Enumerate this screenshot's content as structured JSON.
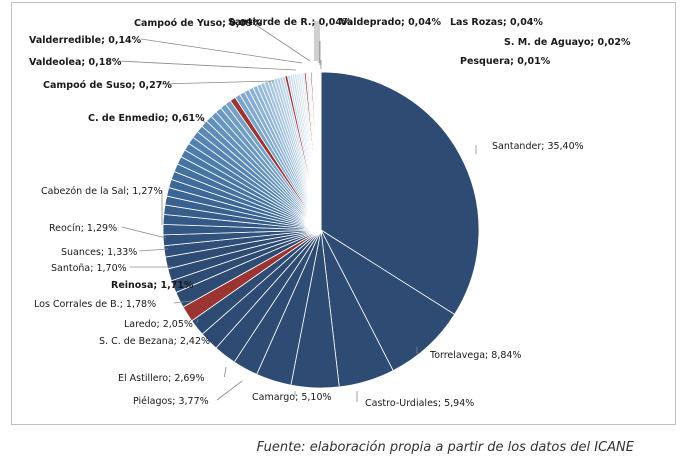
{
  "chart_data": {
    "type": "pie",
    "unit": "%",
    "slices": [
      {
        "label": "Santander; 35,40%",
        "value": 35.4,
        "color": "#2e4b73",
        "bold": false
      },
      {
        "label": "Torrelavega; 8,84%",
        "value": 8.84,
        "color": "#2e4b73",
        "bold": false
      },
      {
        "label": "Castro-Urdiales; 5,94%",
        "value": 5.94,
        "color": "#2e4b73",
        "bold": false
      },
      {
        "label": "Camargo; 5,10%",
        "value": 5.1,
        "color": "#2e4b73",
        "bold": false
      },
      {
        "label": "Piélagos; 3,77%",
        "value": 3.77,
        "color": "#2e4b73",
        "bold": false
      },
      {
        "label": "El Astillero; 2,69%",
        "value": 2.69,
        "color": "#2e4b73",
        "bold": false
      },
      {
        "label": "S. C. de Bezana; 2,42%",
        "value": 2.42,
        "color": "#2e4b73",
        "bold": false
      },
      {
        "label": "Laredo; 2,05%",
        "value": 2.05,
        "color": "#2e4b73",
        "bold": false
      },
      {
        "label": "Los Corrales de B.; 1,78%",
        "value": 1.78,
        "color": "#2e4b73",
        "bold": false
      },
      {
        "label": "Reinosa; 1,71%",
        "value": 1.71,
        "color": "#9b3533",
        "bold": true
      },
      {
        "label": "Santoña; 1,70%",
        "value": 1.7,
        "color": "#2e4b73",
        "bold": false
      },
      {
        "label": "Suances; 1,33%",
        "value": 1.33,
        "color": "#2e4b73",
        "bold": false
      },
      {
        "label": "Reocín; 1,29%",
        "value": 1.29,
        "color": "#2e4b73",
        "bold": false
      },
      {
        "label": "Cabezón de la Sal; 1,27%",
        "value": 1.27,
        "color": "#2e4b73",
        "bold": false
      },
      {
        "label": "",
        "value": 1.2,
        "color": "#2f4f79"
      },
      {
        "label": "",
        "value": 1.15,
        "color": "#31527d"
      },
      {
        "label": "",
        "value": 1.1,
        "color": "#335682"
      },
      {
        "label": "",
        "value": 1.05,
        "color": "#355986"
      },
      {
        "label": "",
        "value": 1.0,
        "color": "#375d8b"
      },
      {
        "label": "",
        "value": 0.95,
        "color": "#39618f"
      },
      {
        "label": "",
        "value": 0.92,
        "color": "#3b6594"
      },
      {
        "label": "",
        "value": 0.9,
        "color": "#3d6998"
      },
      {
        "label": "",
        "value": 0.88,
        "color": "#406d9c"
      },
      {
        "label": "",
        "value": 0.86,
        "color": "#4371a0"
      },
      {
        "label": "",
        "value": 0.84,
        "color": "#4675a4"
      },
      {
        "label": "",
        "value": 0.82,
        "color": "#4a79a8"
      },
      {
        "label": "",
        "value": 0.8,
        "color": "#4e7dac"
      },
      {
        "label": "",
        "value": 0.78,
        "color": "#5281b0"
      },
      {
        "label": "",
        "value": 0.76,
        "color": "#5685b3"
      },
      {
        "label": "",
        "value": 0.74,
        "color": "#5a89b6"
      },
      {
        "label": "",
        "value": 0.72,
        "color": "#5e8db9"
      },
      {
        "label": "",
        "value": 0.7,
        "color": "#6291bc"
      },
      {
        "label": "",
        "value": 0.68,
        "color": "#6795bf"
      },
      {
        "label": "",
        "value": 0.66,
        "color": "#6c99c2"
      },
      {
        "label": "",
        "value": 0.64,
        "color": "#719dc5"
      },
      {
        "label": "",
        "value": 0.62,
        "color": "#76a1c8"
      },
      {
        "label": "C. de Enmedio; 0,61%",
        "value": 0.61,
        "color": "#9b3533",
        "bold": true
      },
      {
        "label": "",
        "value": 0.58,
        "color": "#7ba5cb"
      },
      {
        "label": "",
        "value": 0.55,
        "color": "#80a9ce"
      },
      {
        "label": "",
        "value": 0.52,
        "color": "#85add1"
      },
      {
        "label": "",
        "value": 0.49,
        "color": "#8ab1d4"
      },
      {
        "label": "",
        "value": 0.46,
        "color": "#8fb5d6"
      },
      {
        "label": "",
        "value": 0.43,
        "color": "#94b9d8"
      },
      {
        "label": "",
        "value": 0.4,
        "color": "#99bcda"
      },
      {
        "label": "",
        "value": 0.38,
        "color": "#9ec0dc"
      },
      {
        "label": "",
        "value": 0.36,
        "color": "#a3c3de"
      },
      {
        "label": "",
        "value": 0.34,
        "color": "#a8c6e0"
      },
      {
        "label": "",
        "value": 0.32,
        "color": "#adc9e2"
      },
      {
        "label": "",
        "value": 0.3,
        "color": "#b2cce4"
      },
      {
        "label": "",
        "value": 0.29,
        "color": "#b7cfe6"
      },
      {
        "label": "",
        "value": 0.28,
        "color": "#bcd2e8"
      },
      {
        "label": "Campoó de Suso; 0,27%",
        "value": 0.27,
        "color": "#9b3533",
        "bold": true
      },
      {
        "label": "",
        "value": 0.26,
        "color": "#c1d5ea"
      },
      {
        "label": "",
        "value": 0.25,
        "color": "#c5d8eb"
      },
      {
        "label": "",
        "value": 0.24,
        "color": "#c9dbed"
      },
      {
        "label": "",
        "value": 0.23,
        "color": "#cddeee"
      },
      {
        "label": "",
        "value": 0.22,
        "color": "#d1e1ef"
      },
      {
        "label": "",
        "value": 0.21,
        "color": "#d5e3f0"
      },
      {
        "label": "",
        "value": 0.2,
        "color": "#d8e5f1"
      },
      {
        "label": "",
        "value": 0.19,
        "color": "#dbe7f2"
      },
      {
        "label": "Valdeolea; 0,18%",
        "value": 0.18,
        "color": "#9b3533",
        "bold": true
      },
      {
        "label": "",
        "value": 0.17,
        "color": "#dee9f3"
      },
      {
        "label": "",
        "value": 0.16,
        "color": "#e1ebf4"
      },
      {
        "label": "",
        "value": 0.15,
        "color": "#e4edf5"
      },
      {
        "label": "Valderredible; 0,14%",
        "value": 0.14,
        "color": "#9b3533",
        "bold": true
      },
      {
        "label": "",
        "value": 0.13,
        "color": "#e7eff6"
      },
      {
        "label": "",
        "value": 0.12,
        "color": "#eaf1f7"
      },
      {
        "label": "",
        "value": 0.11,
        "color": "#edf3f8"
      },
      {
        "label": "",
        "value": 0.1,
        "color": "#eff4f9"
      },
      {
        "label": "Campoó de Yuso; 0,09%",
        "value": 0.09,
        "color": "#9b3533",
        "bold": true
      },
      {
        "label": "",
        "value": 0.08,
        "color": "#f1f6fa"
      },
      {
        "label": "",
        "value": 0.07,
        "color": "#f3f7fb"
      },
      {
        "label": "",
        "value": 0.06,
        "color": "#f4f8fb"
      },
      {
        "label": "",
        "value": 0.05,
        "color": "#f5f9fc"
      },
      {
        "label": "Santiurde de R.; 0,04%",
        "value": 0.04,
        "color": "#9b3533",
        "bold": true
      },
      {
        "label": "Valdeprado; 0,04%",
        "value": 0.04,
        "color": "#9b3533",
        "bold": true
      },
      {
        "label": "Las Rozas; 0,04%",
        "value": 0.04,
        "color": "#9b3533",
        "bold": true
      },
      {
        "label": "S. M. de Aguayo; 0,02%",
        "value": 0.02,
        "color": "#9b3533",
        "bold": true
      },
      {
        "label": "Pesquera; 0,01%",
        "value": 0.01,
        "color": "#9b3533",
        "bold": true
      }
    ]
  },
  "source_note": "Fuente: elaboración propia a partir de los datos del ICANE"
}
